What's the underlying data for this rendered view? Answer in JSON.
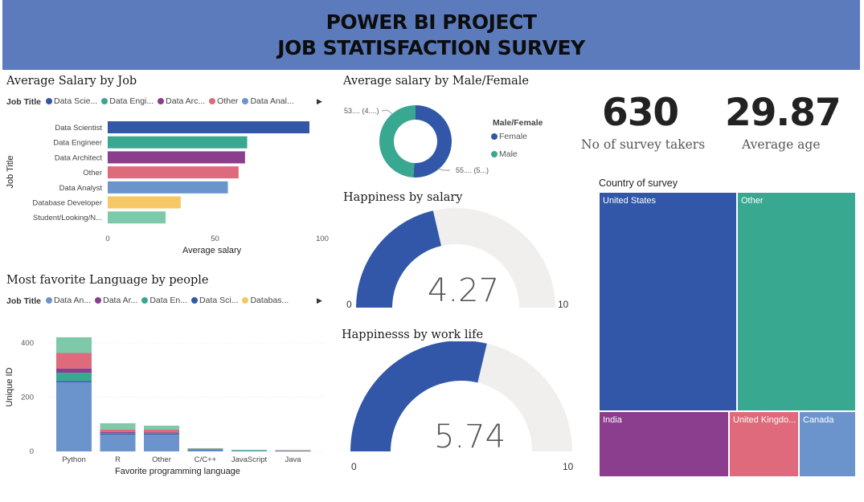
{
  "header": {
    "line1": "POWER BI PROJECT",
    "line2": "JOB STATISFACTION SURVEY"
  },
  "colors": {
    "header_bg": "#5b7bbd",
    "blue_dark": "#3257a8",
    "teal": "#38a890",
    "purple": "#8b3d8e",
    "pink": "#df6a7c",
    "light_blue": "#6b94cc",
    "yellow": "#f5c865",
    "mint": "#7fc9ab",
    "gauge_bg": "#f0efee"
  },
  "salary_by_job": {
    "title": "Average Salary by Job",
    "legend_title": "Job Title",
    "legend_items": [
      {
        "label": "Data Scie...",
        "color": "#3257a8"
      },
      {
        "label": "Data Engi...",
        "color": "#38a890"
      },
      {
        "label": "Data Arc...",
        "color": "#8b3d8e"
      },
      {
        "label": "Other",
        "color": "#df6a7c"
      },
      {
        "label": "Data Anal...",
        "color": "#6b94cc"
      }
    ],
    "y_axis_title": "Job Title",
    "x_axis_title": "Average salary",
    "x_ticks": [
      "0",
      "50",
      "100"
    ],
    "xlim": [
      0,
      100
    ]
  },
  "language": {
    "title": "Most favorite Language by people",
    "legend_title": "Job Title",
    "legend_items": [
      {
        "label": "Data An...",
        "color": "#6b94cc"
      },
      {
        "label": "Data Ar...",
        "color": "#8b3d8e"
      },
      {
        "label": "Data En...",
        "color": "#38a890"
      },
      {
        "label": "Data Sci...",
        "color": "#3257a8"
      },
      {
        "label": "Databas...",
        "color": "#f5c865"
      }
    ],
    "y_axis_title": "Unique ID",
    "x_axis_title": "Favorite programming language",
    "y_ticks": [
      "0",
      "200",
      "400"
    ],
    "ylim": [
      0,
      450
    ]
  },
  "gender": {
    "title": "Average salary by Male/Female",
    "legend_title": "Male/Female",
    "female_label": "Female",
    "male_label": "Male",
    "female_data_label": "55.... (5...)",
    "male_data_label": "53.... (4....)"
  },
  "happiness_salary": {
    "title": "Happiness by salary",
    "value_text": "4.27",
    "value": 4.27,
    "min": "0",
    "max": "10"
  },
  "happiness_worklife": {
    "title": "Happinesss by work life",
    "value_text": "5.74",
    "value": 5.74,
    "min": "0",
    "max": "10"
  },
  "kpis": {
    "survey_takers_value": "630",
    "survey_takers_label": "No of survey takers",
    "avg_age_value": "29.87",
    "avg_age_label": "Average age"
  },
  "country": {
    "title": "Country of survey",
    "cells": [
      {
        "label": "United States",
        "color": "#3257a8"
      },
      {
        "label": "Other",
        "color": "#38a890"
      },
      {
        "label": "India",
        "color": "#8b3d8e"
      },
      {
        "label": "United Kingdo...",
        "color": "#df6a7c"
      },
      {
        "label": "Canada",
        "color": "#6b94cc"
      }
    ]
  },
  "chart_data": [
    {
      "type": "bar",
      "orientation": "horizontal",
      "title": "Average Salary by Job",
      "categories": [
        "Data Scientist",
        "Data Engineer",
        "Data Architect",
        "Other",
        "Data Analyst",
        "Database Developer",
        "Student/Looking/N..."
      ],
      "values": [
        94,
        65,
        64,
        61,
        56,
        34,
        27
      ],
      "colors": [
        "#3257a8",
        "#38a890",
        "#8b3d8e",
        "#df6a7c",
        "#6b94cc",
        "#f5c865",
        "#7fc9ab"
      ],
      "xlabel": "Average salary",
      "ylabel": "Job Title",
      "xlim": [
        0,
        100
      ]
    },
    {
      "type": "bar",
      "stacked": true,
      "title": "Most favorite Language by people",
      "categories": [
        "Python",
        "R",
        "Other",
        "C/C++",
        "JavaScript",
        "Java"
      ],
      "series": [
        {
          "name": "Data Analyst",
          "color": "#6b94cc",
          "values": [
            255,
            62,
            62,
            6,
            3,
            2
          ]
        },
        {
          "name": "Data Scientist",
          "color": "#3257a8",
          "values": [
            5,
            4,
            3,
            1,
            0,
            0
          ]
        },
        {
          "name": "Data Engineer",
          "color": "#38a890",
          "values": [
            30,
            2,
            3,
            1,
            2,
            0
          ]
        },
        {
          "name": "Data Architect",
          "color": "#8b3d8e",
          "values": [
            16,
            3,
            2,
            0,
            0,
            1
          ]
        },
        {
          "name": "Other",
          "color": "#df6a7c",
          "values": [
            57,
            10,
            10,
            2,
            0,
            1
          ]
        },
        {
          "name": "Student/Looking/N...",
          "color": "#7fc9ab",
          "values": [
            58,
            23,
            15,
            2,
            1,
            1
          ]
        }
      ],
      "xlabel": "Favorite programming language",
      "ylabel": "Unique ID",
      "ylim": [
        0,
        450
      ]
    },
    {
      "type": "pie",
      "donut": true,
      "title": "Average salary by Male/Female",
      "categories": [
        "Female",
        "Male"
      ],
      "values": [
        55,
        53
      ],
      "colors": [
        "#3257a8",
        "#38a890"
      ]
    }
  ]
}
